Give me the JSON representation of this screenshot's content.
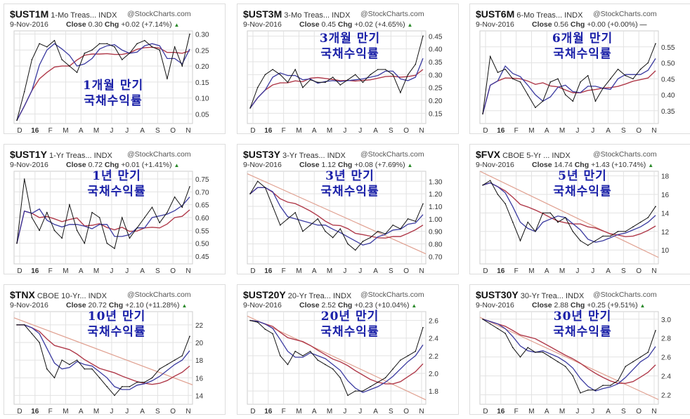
{
  "months": [
    "D",
    "16",
    "F",
    "M",
    "A",
    "M",
    "J",
    "J",
    "A",
    "S",
    "O",
    "N"
  ],
  "watermark": "@StockCharts.com",
  "date": "9-Nov-2016",
  "close_label": "Close",
  "chg_label": "Chg",
  "colors": {
    "price": "#111111",
    "ma_short": "#3a3aa0",
    "ma_long": "#b03a4a",
    "trend": "#e0a090",
    "grid": "#e2e2e2"
  },
  "chart_data": [
    {
      "type": "line",
      "symbol": "$UST1M",
      "name": "1-Mo Treas...",
      "exchange": "INDX",
      "close": "0.30",
      "chg": "+0.02 (+7.14%)",
      "dir": "up",
      "overlay": [
        "1개월 만기",
        "국채수익률"
      ],
      "ylim": [
        0.02,
        0.31
      ],
      "yticks": [
        "0.05",
        "0.10",
        "0.15",
        "0.20",
        "0.25",
        "0.30"
      ],
      "values": [
        0.03,
        0.12,
        0.22,
        0.27,
        0.26,
        0.28,
        0.22,
        0.2,
        0.18,
        0.24,
        0.25,
        0.27,
        0.27,
        0.26,
        0.22,
        0.24,
        0.27,
        0.28,
        0.26,
        0.25,
        0.16,
        0.26,
        0.2,
        0.3
      ],
      "trend": null
    },
    {
      "type": "line",
      "symbol": "$UST3M",
      "name": "3-Mo Treas...",
      "exchange": "INDX",
      "close": "0.45",
      "chg": "+0.02 (+4.65%)",
      "dir": "up",
      "overlay": [
        "3개월 만기",
        "국채수익률"
      ],
      "ylim": [
        0.11,
        0.47
      ],
      "yticks": [
        "0.15",
        "0.20",
        "0.25",
        "0.30",
        "0.35",
        "0.40",
        "0.45"
      ],
      "values": [
        0.17,
        0.25,
        0.3,
        0.32,
        0.3,
        0.27,
        0.32,
        0.25,
        0.28,
        0.27,
        0.27,
        0.29,
        0.26,
        0.28,
        0.3,
        0.27,
        0.3,
        0.32,
        0.32,
        0.3,
        0.23,
        0.3,
        0.34,
        0.45
      ],
      "trend": null
    },
    {
      "type": "line",
      "symbol": "$UST6M",
      "name": "6-Mo Treas...",
      "exchange": "INDX",
      "close": "0.56",
      "chg": "+0.00 (+0.00%)",
      "dir": "flat",
      "overlay": [
        "6개월 만기",
        "국채수익률"
      ],
      "ylim": [
        0.31,
        0.6
      ],
      "yticks": [
        "0.35",
        "0.40",
        "0.45",
        "0.50",
        "0.55"
      ],
      "values": [
        0.34,
        0.52,
        0.47,
        0.48,
        0.45,
        0.44,
        0.4,
        0.36,
        0.38,
        0.44,
        0.45,
        0.4,
        0.38,
        0.44,
        0.46,
        0.38,
        0.42,
        0.45,
        0.48,
        0.46,
        0.45,
        0.48,
        0.5,
        0.56
      ],
      "trend": null
    },
    {
      "type": "line",
      "symbol": "$UST1Y",
      "name": "1-Yr Treas...",
      "exchange": "INDX",
      "close": "0.72",
      "chg": "+0.01 (+1.41%)",
      "dir": "up",
      "overlay": [
        "1년 만기",
        "국채수익률"
      ],
      "ylim": [
        0.42,
        0.78
      ],
      "yticks": [
        "0.45",
        "0.50",
        "0.55",
        "0.60",
        "0.65",
        "0.70",
        "0.75"
      ],
      "values": [
        0.5,
        0.75,
        0.6,
        0.55,
        0.62,
        0.55,
        0.52,
        0.65,
        0.55,
        0.5,
        0.62,
        0.6,
        0.5,
        0.48,
        0.6,
        0.52,
        0.56,
        0.6,
        0.64,
        0.58,
        0.62,
        0.68,
        0.64,
        0.72
      ],
      "trend": null
    },
    {
      "type": "line",
      "symbol": "$UST3Y",
      "name": "3-Yr Treas...",
      "exchange": "INDX",
      "close": "1.12",
      "chg": "+0.08 (+7.69%)",
      "dir": "up",
      "overlay": [
        "3년 만기",
        "국채수익률"
      ],
      "ylim": [
        0.64,
        1.38
      ],
      "yticks": [
        "0.70",
        "0.80",
        "0.90",
        "1.00",
        "1.10",
        "1.20",
        "1.30"
      ],
      "values": [
        1.2,
        1.3,
        1.25,
        1.1,
        0.95,
        1.0,
        1.05,
        0.9,
        0.95,
        1.0,
        0.9,
        0.85,
        0.92,
        0.8,
        0.75,
        0.82,
        0.85,
        0.9,
        0.88,
        0.95,
        0.92,
        1.0,
        0.98,
        1.12
      ],
      "trend": [
        1.36,
        0.72
      ]
    },
    {
      "type": "line",
      "symbol": "$FVX",
      "name": "CBOE 5-Yr ...",
      "exchange": "INDX",
      "close": "14.74",
      "chg": "+1.43 (+10.74%)",
      "dir": "up",
      "overlay": [
        "5년 만기",
        "국채수익률"
      ],
      "ylim": [
        8.5,
        18.5
      ],
      "yticks": [
        "10",
        "12",
        "14",
        "16",
        "18"
      ],
      "values": [
        17,
        17.5,
        16,
        15,
        13,
        11,
        13,
        12,
        14,
        14,
        13,
        13.5,
        12,
        11,
        10.5,
        11,
        11.5,
        11.5,
        12,
        12,
        12.5,
        13,
        13.5,
        14.7
      ],
      "trend": [
        18.5,
        9.2
      ]
    },
    {
      "type": "line",
      "symbol": "$TNX",
      "name": "CBOE 10-Yr...",
      "exchange": "INDX",
      "close": "20.72",
      "chg": "+2.10 (+11.28%)",
      "dir": "up",
      "overlay": [
        "10년 만기",
        "국채수익률"
      ],
      "ylim": [
        13,
        23.5
      ],
      "yticks": [
        "14",
        "16",
        "18",
        "20",
        "22"
      ],
      "values": [
        22,
        22,
        21,
        20,
        17,
        16,
        18,
        17.5,
        18,
        17,
        17,
        16,
        15,
        14,
        15,
        15,
        15.5,
        15.5,
        16,
        17,
        17.5,
        18,
        18.5,
        20.7
      ],
      "trend": [
        22.8,
        15.2
      ]
    },
    {
      "type": "line",
      "symbol": "$UST20Y",
      "name": "20-Yr Trea...",
      "exchange": "INDX",
      "close": "2.52",
      "chg": "+0.23 (+10.04%)",
      "dir": "up",
      "overlay": [
        "20년 만기",
        "국채수익률"
      ],
      "ylim": [
        1.65,
        2.7
      ],
      "yticks": [
        "1.8",
        "2.0",
        "2.2",
        "2.4",
        "2.6"
      ],
      "values": [
        2.6,
        2.58,
        2.5,
        2.45,
        2.2,
        2.1,
        2.25,
        2.2,
        2.25,
        2.15,
        2.1,
        2.05,
        1.95,
        1.75,
        1.8,
        1.8,
        1.85,
        1.9,
        1.95,
        2.05,
        2.15,
        2.2,
        2.25,
        2.52
      ],
      "trend": [
        2.65,
        1.7
      ]
    },
    {
      "type": "line",
      "symbol": "$UST30Y",
      "name": "30-Yr Trea...",
      "exchange": "INDX",
      "close": "2.88",
      "chg": "+0.25 (+9.51%)",
      "dir": "up",
      "overlay": [
        "30년 만기",
        "국채수익률"
      ],
      "ylim": [
        2.1,
        3.08
      ],
      "yticks": [
        "2.2",
        "2.4",
        "2.6",
        "2.8",
        "3.0"
      ],
      "values": [
        3.0,
        2.95,
        2.9,
        2.85,
        2.7,
        2.6,
        2.7,
        2.65,
        2.65,
        2.6,
        2.55,
        2.5,
        2.4,
        2.22,
        2.25,
        2.25,
        2.3,
        2.3,
        2.35,
        2.5,
        2.55,
        2.6,
        2.65,
        2.88
      ],
      "trend": [
        3.02,
        2.15
      ]
    }
  ]
}
